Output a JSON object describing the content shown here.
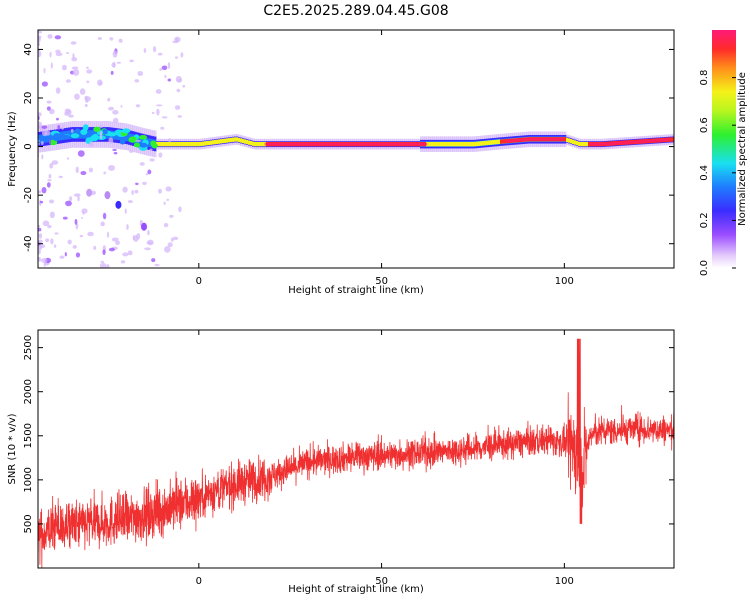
{
  "title": "C2E5.2025.289.04.45.G08",
  "chart_data": [
    {
      "type": "heatmap",
      "xlabel": "Height of straight line (km)",
      "ylabel": "Frequency (Hz)",
      "xlim": [
        -44,
        130
      ],
      "ylim": [
        -50,
        48
      ],
      "xticks": [
        0,
        50,
        100
      ],
      "yticks": [
        -40,
        -20,
        0,
        20,
        40
      ],
      "colorbar": {
        "label": "Normalized spectral amplitude",
        "range": [
          0,
          1
        ],
        "ticks": [
          "0.0",
          "0.2",
          "0.4",
          "0.6",
          "0.8"
        ],
        "tick_values": [
          0,
          0.2,
          0.4,
          0.6,
          0.8
        ],
        "colormap": "rainbow (white-violet-blue-cyan-green-yellow-red-pink)"
      },
      "ridge": {
        "description": "dominant frequency vs height",
        "height_km": [
          -44,
          -35,
          -25,
          -20,
          -15,
          -12,
          -5,
          0,
          5,
          10,
          15,
          25,
          50,
          75,
          82,
          90,
          100,
          104,
          110,
          120,
          130
        ],
        "frequency_hz": [
          3,
          5,
          5,
          4,
          2,
          1,
          1,
          1,
          2,
          3,
          1,
          1,
          1,
          1,
          2,
          3,
          3,
          1,
          1,
          2,
          3
        ]
      }
    },
    {
      "type": "line",
      "xlabel": "Height of straight line (km)",
      "ylabel": "SNR (10 * v/v)",
      "xlim": [
        -44,
        130
      ],
      "ylim": [
        0,
        2700
      ],
      "xticks": [
        0,
        50,
        100
      ],
      "yticks": [
        500,
        1000,
        1500,
        2000,
        2500
      ],
      "color": "#f03030",
      "series": [
        {
          "x": [
            -44,
            -40,
            -30,
            -20,
            -10,
            0,
            10,
            20,
            30,
            40,
            50,
            60,
            70,
            80,
            90,
            95,
            100,
            103,
            105,
            107,
            110,
            120,
            130
          ],
          "y": [
            350,
            450,
            500,
            550,
            650,
            800,
            950,
            1050,
            1200,
            1250,
            1280,
            1300,
            1330,
            1380,
            1430,
            1450,
            1420,
            1350,
            1100,
            1500,
            1550,
            1580,
            1560
          ]
        }
      ]
    }
  ]
}
